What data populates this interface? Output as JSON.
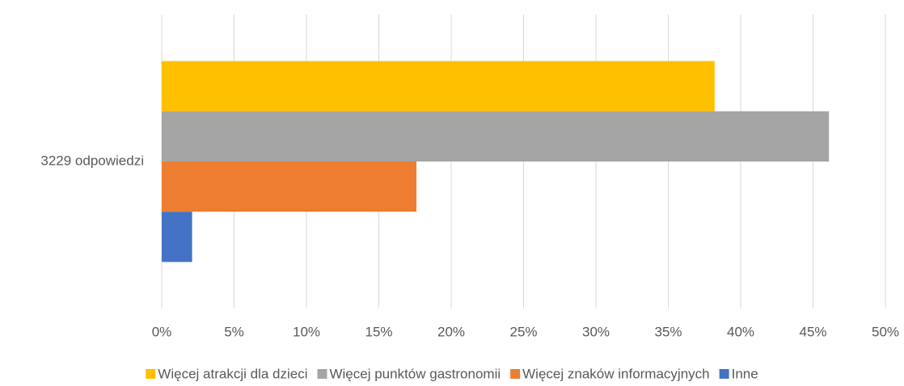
{
  "chart_data": {
    "type": "hbar",
    "categories": [
      "3229 odpowiedzi"
    ],
    "series": [
      {
        "name": "Więcej atrakcji dla dzieci",
        "color": "#ffc000",
        "values": [
          38.2
        ]
      },
      {
        "name": "Więcej punktów gastronomii",
        "color": "#a5a5a5",
        "values": [
          46.1
        ]
      },
      {
        "name": "Więcej znaków informacyjnych",
        "color": "#ed7d31",
        "values": [
          17.6
        ]
      },
      {
        "name": "Inne",
        "color": "#4472c4",
        "values": [
          2.1
        ]
      }
    ],
    "xlim": [
      0,
      50
    ],
    "xticks": [
      {
        "value": 0,
        "label": "0%"
      },
      {
        "value": 5,
        "label": "5%"
      },
      {
        "value": 10,
        "label": "10%"
      },
      {
        "value": 15,
        "label": "15%"
      },
      {
        "value": 20,
        "label": "20%"
      },
      {
        "value": 25,
        "label": "25%"
      },
      {
        "value": 30,
        "label": "30%"
      },
      {
        "value": 35,
        "label": "35%"
      },
      {
        "value": 40,
        "label": "40%"
      },
      {
        "value": 45,
        "label": "45%"
      },
      {
        "value": 50,
        "label": "50%"
      }
    ],
    "grid": true,
    "legend": "bottom"
  }
}
